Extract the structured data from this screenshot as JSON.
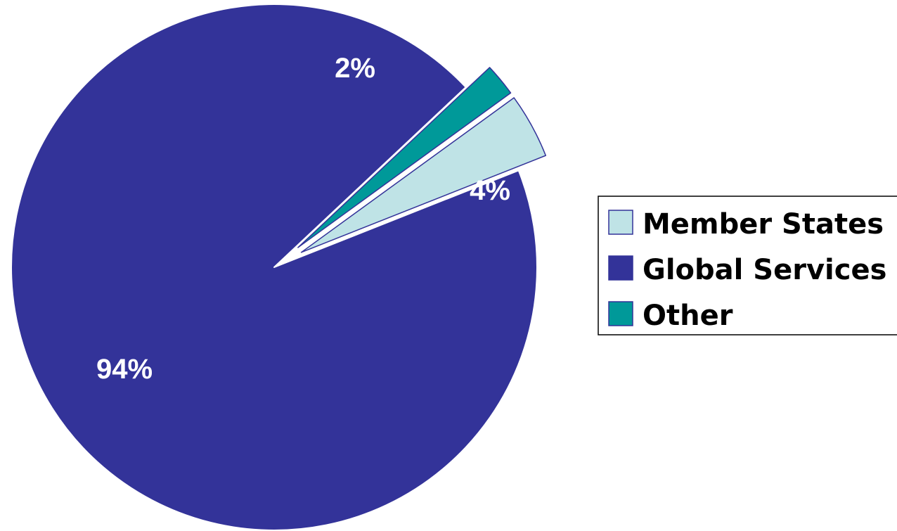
{
  "chart_data": {
    "type": "pie",
    "slices": [
      {
        "label": "Member States",
        "value": 4,
        "display": "4%",
        "color": "#BFE3E6",
        "exploded": true
      },
      {
        "label": "Global Services",
        "value": 94,
        "display": "94%",
        "color": "#333399",
        "exploded": false
      },
      {
        "label": "Other",
        "value": 2,
        "display": "2%",
        "color": "#009999",
        "exploded": true
      }
    ],
    "legend_placement": "right"
  }
}
